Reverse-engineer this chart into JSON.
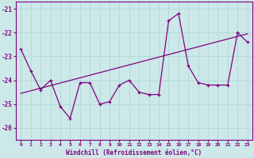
{
  "x": [
    0,
    1,
    2,
    3,
    4,
    5,
    6,
    7,
    8,
    9,
    10,
    11,
    12,
    13,
    14,
    15,
    16,
    17,
    18,
    19,
    20,
    21,
    22,
    23
  ],
  "y_main": [
    -22.7,
    -23.6,
    -24.4,
    -24.0,
    -25.1,
    -25.6,
    -24.1,
    -24.1,
    -25.0,
    -24.9,
    -24.2,
    -24.0,
    -24.5,
    -24.6,
    -24.6,
    -21.5,
    -21.2,
    -23.4,
    -24.1,
    -24.2,
    -24.2,
    -24.2,
    -22.0,
    -22.4
  ],
  "y_trend_x": [
    0,
    23
  ],
  "y_trend_y": [
    -24.55,
    -22.05
  ],
  "color": "#800080",
  "bg_color": "#cce8e8",
  "grid_color": "#b0d8d8",
  "xlabel": "Windchill (Refroidissement éolien,°C)",
  "ylim": [
    -26.5,
    -20.7
  ],
  "xlim": [
    -0.5,
    23.5
  ],
  "yticks": [
    -26,
    -25,
    -24,
    -23,
    -22,
    -21
  ],
  "xticks": [
    0,
    1,
    2,
    3,
    4,
    5,
    6,
    7,
    8,
    9,
    10,
    11,
    12,
    13,
    14,
    15,
    16,
    17,
    18,
    19,
    20,
    21,
    22,
    23
  ]
}
